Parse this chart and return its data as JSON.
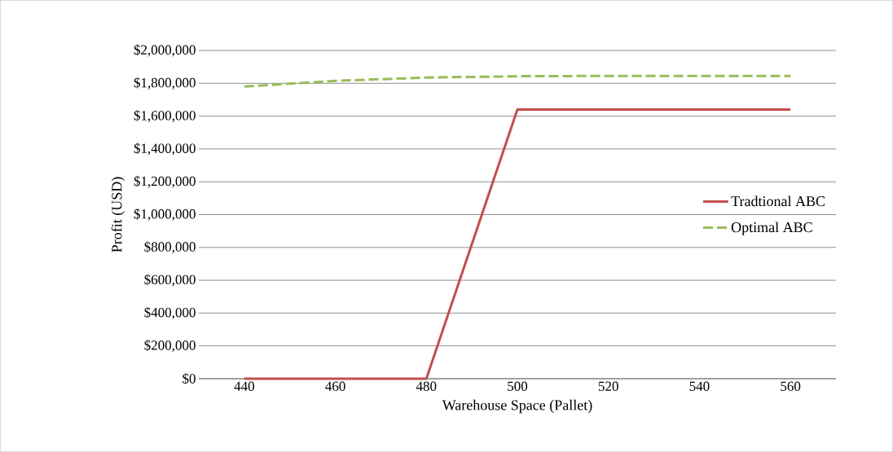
{
  "chart_data": {
    "type": "line",
    "xlabel": "Warehouse Space (Pallet)",
    "ylabel": "Profit (USD)",
    "x": [
      440,
      460,
      480,
      500,
      520,
      540,
      560
    ],
    "series": [
      {
        "name": "Tradtional ABC",
        "color": "#c0504d",
        "line_style": "solid",
        "values": [
          0,
          0,
          0,
          1640000,
          1640000,
          1640000,
          1640000
        ]
      },
      {
        "name": "Optimal ABC",
        "color": "#9bbb59",
        "line_style": "dashed",
        "values": [
          1780000,
          1815000,
          1835000,
          1843000,
          1845000,
          1845000,
          1845000
        ]
      }
    ],
    "xlim": [
      430,
      570
    ],
    "xticks": [
      440,
      460,
      480,
      500,
      520,
      540,
      560
    ],
    "ylim": [
      0,
      2000000
    ],
    "yticks": [
      {
        "value": 0,
        "label": "$0"
      },
      {
        "value": 200000,
        "label": "$200,000"
      },
      {
        "value": 400000,
        "label": "$400,000"
      },
      {
        "value": 600000,
        "label": "$600,000"
      },
      {
        "value": 800000,
        "label": "$800,000"
      },
      {
        "value": 1000000,
        "label": "$1,000,000"
      },
      {
        "value": 1200000,
        "label": "$1,200,000"
      },
      {
        "value": 1400000,
        "label": "$1,400,000"
      },
      {
        "value": 1600000,
        "label": "$1,600,000"
      },
      {
        "value": 1800000,
        "label": "$1,800,000"
      },
      {
        "value": 2000000,
        "label": "$2,000,000"
      }
    ],
    "grid": "y",
    "legend": "right",
    "marker": "none"
  }
}
